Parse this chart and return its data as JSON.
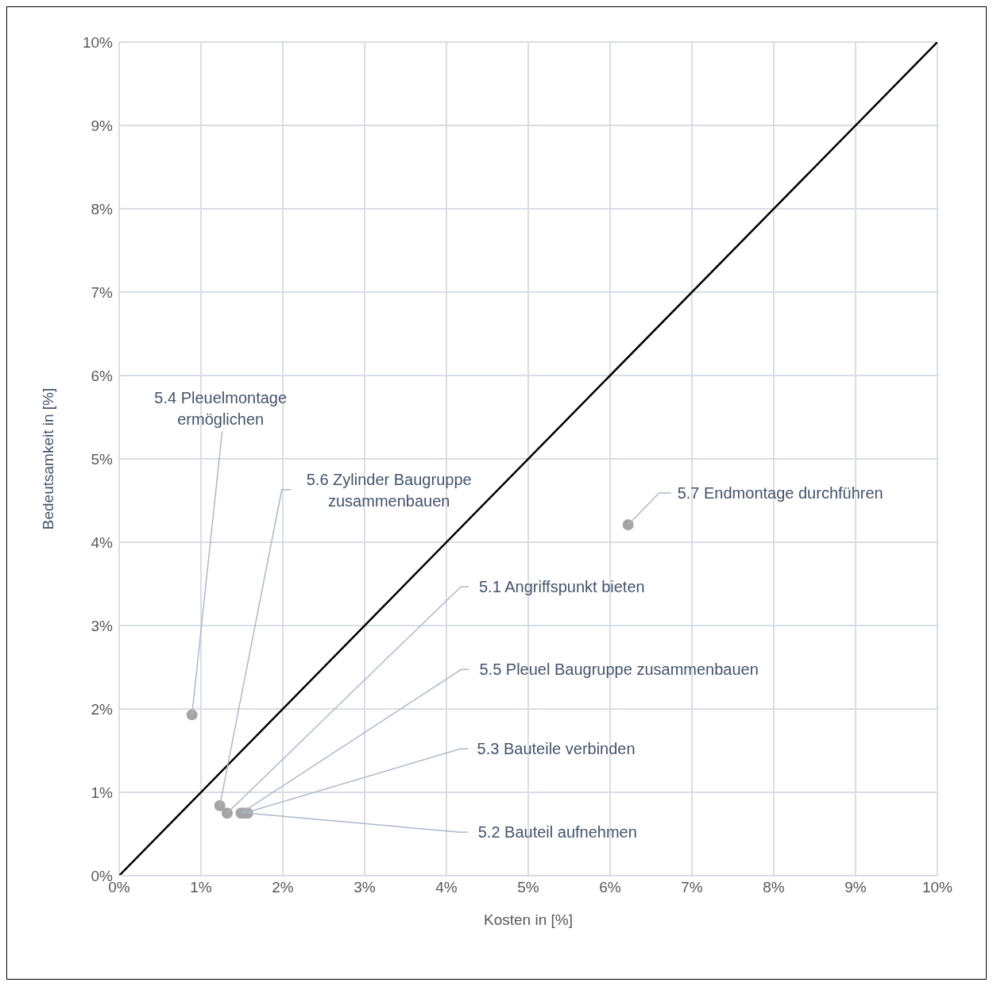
{
  "chart_data": {
    "type": "scatter",
    "xlabel": "Kosten in [%]",
    "ylabel": "Bedeutsamkeit in [%]",
    "xlim": [
      0,
      10
    ],
    "ylim": [
      0,
      10
    ],
    "xticks": [
      {
        "value": 0,
        "label": "0%"
      },
      {
        "value": 1,
        "label": "1%"
      },
      {
        "value": 2,
        "label": "2%"
      },
      {
        "value": 3,
        "label": "3%"
      },
      {
        "value": 4,
        "label": "4%"
      },
      {
        "value": 5,
        "label": "5%"
      },
      {
        "value": 6,
        "label": "6%"
      },
      {
        "value": 7,
        "label": "7%"
      },
      {
        "value": 8,
        "label": "8%"
      },
      {
        "value": 9,
        "label": "9%"
      },
      {
        "value": 10,
        "label": "10%"
      }
    ],
    "yticks": [
      {
        "value": 0,
        "label": "0%"
      },
      {
        "value": 1,
        "label": "1%"
      },
      {
        "value": 2,
        "label": "2%"
      },
      {
        "value": 3,
        "label": "3%"
      },
      {
        "value": 4,
        "label": "4%"
      },
      {
        "value": 5,
        "label": "5%"
      },
      {
        "value": 6,
        "label": "6%"
      },
      {
        "value": 7,
        "label": "7%"
      },
      {
        "value": 8,
        "label": "8%"
      },
      {
        "value": 9,
        "label": "9%"
      },
      {
        "value": 10,
        "label": "10%"
      }
    ],
    "grid": true,
    "marker": "circle",
    "series": [
      {
        "color": "#a5a5a5",
        "x": [
          0.89,
          1.23,
          1.32,
          1.49,
          1.53,
          1.57,
          6.22
        ],
        "values": [
          1.93,
          0.84,
          0.75,
          0.75,
          0.75,
          0.75,
          4.21
        ]
      },
      {
        "type": "line",
        "color": "#000000",
        "x": [
          0,
          10
        ],
        "values": [
          0,
          10
        ],
        "marker": "none",
        "line_style": "solid"
      }
    ],
    "annotations": [
      {
        "text": "5.4 Pleuelmontage ermöglichen",
        "x": 0.89,
        "y": 1.93
      },
      {
        "text": "5.6 Zylinder Baugruppe zusammenbauen",
        "x": 1.23,
        "y": 0.84
      },
      {
        "text": "5.1 Angriffspunkt bieten",
        "x": 1.32,
        "y": 0.75
      },
      {
        "text": "5.5 Pleuel Baugruppe zusammenbauen",
        "x": 1.49,
        "y": 0.75
      },
      {
        "text": "5.3 Bauteile verbinden",
        "x": 1.53,
        "y": 0.75
      },
      {
        "text": "5.2 Bauteil aufnehmen",
        "x": 1.57,
        "y": 0.75
      },
      {
        "text": "5.7 Endmontage durchführen",
        "x": 6.22,
        "y": 4.21
      }
    ]
  }
}
